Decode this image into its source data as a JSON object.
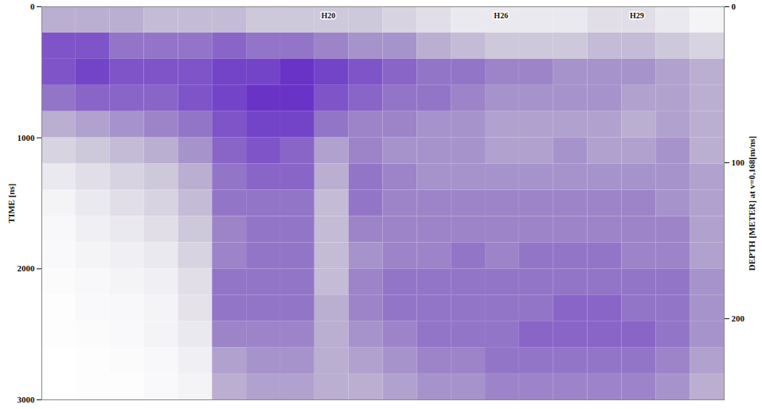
{
  "chart_data": {
    "type": "heatmap",
    "y_label": "TIME [ns]",
    "y2_label": "DEPTH [METER] at v=0,168[m/ns]",
    "xlim": [
      0,
      100
    ],
    "ylim": [
      0,
      3000
    ],
    "yticks": [
      0,
      1000,
      2000,
      3000
    ],
    "y2lim": [
      0,
      252
    ],
    "y2ticks": [
      0,
      100,
      200
    ],
    "tick_labels": "y",
    "x_bins": [
      0,
      5,
      10,
      15,
      20,
      25,
      30,
      35,
      40,
      45,
      50,
      55,
      60,
      65,
      70,
      75,
      80,
      85,
      90,
      95,
      100
    ],
    "y_bins": [
      0,
      200,
      400,
      600,
      800,
      1000,
      1200,
      1400,
      1600,
      1800,
      2000,
      2200,
      2400,
      2600,
      2800,
      3000
    ],
    "cells": [
      [
        0.4,
        0.4,
        0.4,
        0.35,
        0.35,
        0.35,
        0.3,
        0.3,
        0.3,
        0.3,
        0.25,
        0.2,
        0.15,
        0.15,
        0.15,
        0.15,
        0.2,
        0.2,
        0.15,
        0.1
      ],
      [
        0.7,
        0.7,
        0.6,
        0.6,
        0.6,
        0.65,
        0.6,
        0.6,
        0.55,
        0.5,
        0.5,
        0.4,
        0.35,
        0.3,
        0.3,
        0.3,
        0.35,
        0.35,
        0.3,
        0.25
      ],
      [
        0.7,
        0.75,
        0.7,
        0.7,
        0.7,
        0.75,
        0.75,
        0.8,
        0.75,
        0.7,
        0.65,
        0.6,
        0.6,
        0.55,
        0.55,
        0.5,
        0.5,
        0.5,
        0.45,
        0.4
      ],
      [
        0.6,
        0.65,
        0.65,
        0.65,
        0.7,
        0.75,
        0.8,
        0.8,
        0.7,
        0.65,
        0.6,
        0.6,
        0.55,
        0.5,
        0.5,
        0.5,
        0.5,
        0.45,
        0.45,
        0.4
      ],
      [
        0.4,
        0.45,
        0.5,
        0.55,
        0.6,
        0.7,
        0.75,
        0.75,
        0.6,
        0.55,
        0.55,
        0.5,
        0.5,
        0.45,
        0.45,
        0.45,
        0.45,
        0.4,
        0.45,
        0.4
      ],
      [
        0.25,
        0.3,
        0.35,
        0.4,
        0.5,
        0.65,
        0.7,
        0.65,
        0.45,
        0.55,
        0.5,
        0.5,
        0.5,
        0.45,
        0.45,
        0.5,
        0.45,
        0.45,
        0.5,
        0.4
      ],
      [
        0.15,
        0.2,
        0.25,
        0.3,
        0.4,
        0.6,
        0.65,
        0.65,
        0.4,
        0.6,
        0.55,
        0.5,
        0.5,
        0.5,
        0.5,
        0.5,
        0.5,
        0.5,
        0.5,
        0.45
      ],
      [
        0.1,
        0.15,
        0.2,
        0.25,
        0.35,
        0.6,
        0.6,
        0.6,
        0.35,
        0.6,
        0.55,
        0.55,
        0.55,
        0.55,
        0.55,
        0.55,
        0.55,
        0.55,
        0.5,
        0.45
      ],
      [
        0.08,
        0.12,
        0.15,
        0.2,
        0.3,
        0.55,
        0.6,
        0.6,
        0.35,
        0.55,
        0.55,
        0.55,
        0.55,
        0.55,
        0.55,
        0.55,
        0.55,
        0.55,
        0.55,
        0.45
      ],
      [
        0.07,
        0.1,
        0.12,
        0.15,
        0.25,
        0.55,
        0.6,
        0.6,
        0.35,
        0.5,
        0.55,
        0.55,
        0.6,
        0.55,
        0.6,
        0.6,
        0.6,
        0.55,
        0.55,
        0.45
      ],
      [
        0.06,
        0.08,
        0.1,
        0.12,
        0.2,
        0.6,
        0.6,
        0.6,
        0.35,
        0.55,
        0.6,
        0.6,
        0.6,
        0.6,
        0.6,
        0.6,
        0.6,
        0.6,
        0.6,
        0.5
      ],
      [
        0.05,
        0.07,
        0.08,
        0.1,
        0.18,
        0.6,
        0.6,
        0.6,
        0.4,
        0.55,
        0.6,
        0.6,
        0.6,
        0.6,
        0.6,
        0.65,
        0.65,
        0.6,
        0.6,
        0.5
      ],
      [
        0.05,
        0.06,
        0.07,
        0.1,
        0.15,
        0.55,
        0.55,
        0.55,
        0.4,
        0.5,
        0.55,
        0.6,
        0.6,
        0.6,
        0.65,
        0.65,
        0.65,
        0.65,
        0.6,
        0.5
      ],
      [
        0.04,
        0.05,
        0.06,
        0.08,
        0.12,
        0.45,
        0.5,
        0.5,
        0.4,
        0.45,
        0.5,
        0.55,
        0.55,
        0.6,
        0.6,
        0.6,
        0.6,
        0.6,
        0.55,
        0.45
      ],
      [
        0.04,
        0.05,
        0.05,
        0.07,
        0.1,
        0.4,
        0.45,
        0.45,
        0.4,
        0.4,
        0.45,
        0.5,
        0.5,
        0.55,
        0.55,
        0.55,
        0.55,
        0.55,
        0.5,
        0.4
      ]
    ],
    "annotations": [
      {
        "text": "H20",
        "x": 42
      },
      {
        "text": "H26",
        "x": 67.3
      },
      {
        "text": "H29",
        "x": 87.2
      }
    ]
  }
}
